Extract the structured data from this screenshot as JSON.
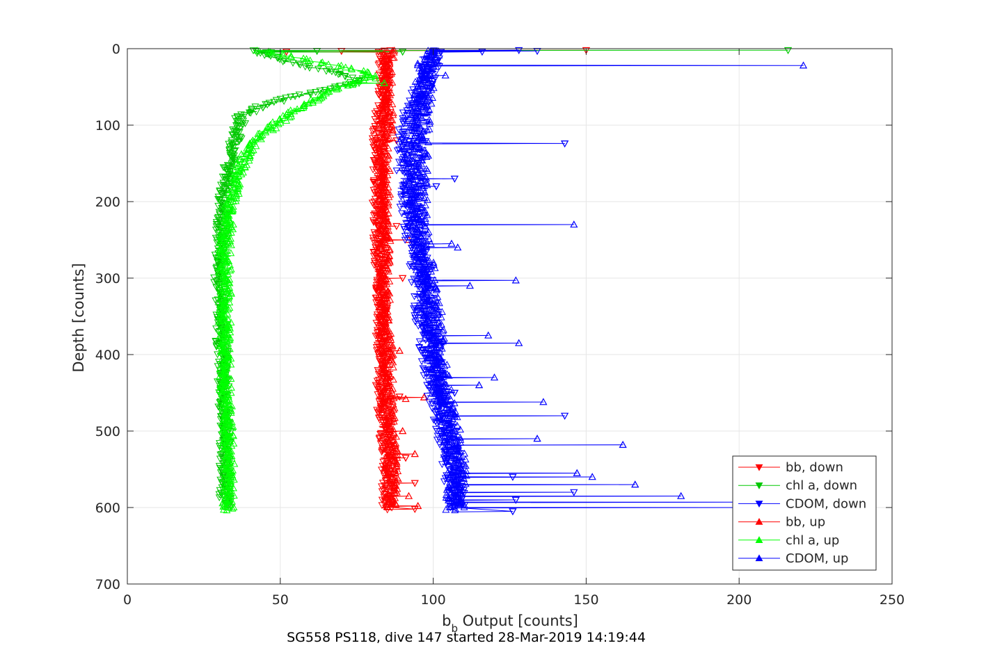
{
  "chart_data": {
    "type": "line",
    "title": "",
    "caption": "SG558 PS118, dive 147 started 28-Mar-2019 14:19:44",
    "xlabel_main": "b",
    "xlabel_sub": "b",
    "xlabel_rest": " Output [counts]",
    "ylabel": "Depth [counts]",
    "xlim": [
      0,
      250
    ],
    "ylim": [
      0,
      700
    ],
    "y_reversed": true,
    "grid": true,
    "x_ticks": [
      0,
      50,
      100,
      150,
      200,
      250
    ],
    "x_tick_labels": [
      "0",
      "50",
      "100",
      "150",
      "200",
      "250"
    ],
    "y_ticks": [
      0,
      100,
      200,
      300,
      400,
      500,
      600,
      700
    ],
    "y_tick_labels": [
      "0",
      "100",
      "200",
      "300",
      "400",
      "500",
      "600",
      "700"
    ],
    "legend_position": "bottom-right",
    "series": [
      {
        "name": "bb, down",
        "color": "#ff0000",
        "marker": "triangle-down",
        "profile": [
          [
            2,
            84
          ],
          [
            20,
            84
          ],
          [
            50,
            84
          ],
          [
            80,
            83
          ],
          [
            100,
            82
          ],
          [
            150,
            82
          ],
          [
            200,
            82
          ],
          [
            250,
            82
          ],
          [
            300,
            83
          ],
          [
            350,
            83
          ],
          [
            400,
            83
          ],
          [
            450,
            83
          ],
          [
            500,
            84
          ],
          [
            550,
            85
          ],
          [
            600,
            85
          ]
        ],
        "spikes": [
          [
            2,
            150
          ],
          [
            3,
            70
          ],
          [
            4,
            52
          ],
          [
            120,
            88
          ],
          [
            232,
            88
          ],
          [
            300,
            90
          ],
          [
            455,
            89
          ],
          [
            535,
            91
          ],
          [
            568,
            94
          ],
          [
            602,
            94
          ]
        ]
      },
      {
        "name": "chl a, down",
        "color": "#00c800",
        "marker": "triangle-down",
        "profile": [
          [
            2,
            42
          ],
          [
            10,
            46
          ],
          [
            20,
            55
          ],
          [
            30,
            68
          ],
          [
            40,
            76
          ],
          [
            45,
            74
          ],
          [
            55,
            64
          ],
          [
            65,
            52
          ],
          [
            78,
            42
          ],
          [
            90,
            37
          ],
          [
            110,
            36
          ],
          [
            140,
            34
          ],
          [
            180,
            32
          ],
          [
            230,
            31
          ],
          [
            300,
            30
          ],
          [
            400,
            31
          ],
          [
            500,
            32
          ],
          [
            600,
            32
          ]
        ],
        "spikes": [
          [
            2,
            216
          ],
          [
            3,
            62
          ],
          [
            4,
            90
          ],
          [
            5,
            47
          ]
        ]
      },
      {
        "name": "CDOM, down",
        "color": "#0000ff",
        "marker": "triangle-down",
        "profile": [
          [
            2,
            100
          ],
          [
            20,
            100
          ],
          [
            50,
            97
          ],
          [
            80,
            93
          ],
          [
            100,
            92
          ],
          [
            150,
            91
          ],
          [
            200,
            92
          ],
          [
            250,
            94
          ],
          [
            300,
            96
          ],
          [
            350,
            97
          ],
          [
            400,
            99
          ],
          [
            450,
            101
          ],
          [
            500,
            104
          ],
          [
            550,
            106
          ],
          [
            600,
            108
          ]
        ],
        "spikes": [
          [
            2,
            128
          ],
          [
            3,
            134
          ],
          [
            4,
            116
          ],
          [
            124,
            143
          ],
          [
            170,
            107
          ],
          [
            180,
            101
          ],
          [
            450,
            107
          ],
          [
            480,
            143
          ],
          [
            560,
            126
          ],
          [
            580,
            146
          ],
          [
            590,
            127
          ],
          [
            605,
            126
          ]
        ]
      },
      {
        "name": "bb, up",
        "color": "#ff0000",
        "marker": "triangle-up",
        "profile": [
          [
            600,
            86
          ],
          [
            550,
            87
          ],
          [
            500,
            86
          ],
          [
            450,
            85
          ],
          [
            400,
            85
          ],
          [
            350,
            84
          ],
          [
            300,
            84
          ],
          [
            250,
            84
          ],
          [
            200,
            84
          ],
          [
            150,
            84
          ],
          [
            100,
            85
          ],
          [
            50,
            85
          ],
          [
            20,
            85
          ],
          [
            2,
            86
          ]
        ],
        "spikes": [
          [
            250,
            92
          ],
          [
            395,
            89
          ],
          [
            456,
            97
          ],
          [
            458,
            91
          ],
          [
            500,
            90
          ],
          [
            530,
            94
          ],
          [
            585,
            92
          ],
          [
            598,
            95
          ]
        ]
      },
      {
        "name": "chl a, up",
        "color": "#00ff00",
        "marker": "triangle-up",
        "profile": [
          [
            604,
            33
          ],
          [
            550,
            33
          ],
          [
            500,
            33
          ],
          [
            450,
            32
          ],
          [
            400,
            32
          ],
          [
            300,
            32
          ],
          [
            250,
            32
          ],
          [
            200,
            34
          ],
          [
            160,
            36
          ],
          [
            130,
            40
          ],
          [
            110,
            45
          ],
          [
            85,
            53
          ],
          [
            70,
            60
          ],
          [
            55,
            66
          ],
          [
            45,
            74
          ],
          [
            40,
            79
          ],
          [
            35,
            81
          ],
          [
            25,
            73
          ],
          [
            15,
            59
          ],
          [
            8,
            50
          ],
          [
            3,
            44
          ]
        ],
        "spikes": [
          [
            45,
            84
          ]
        ]
      },
      {
        "name": "CDOM, up",
        "color": "#0000ff",
        "marker": "triangle-up",
        "profile": [
          [
            604,
            107
          ],
          [
            550,
            108
          ],
          [
            500,
            106
          ],
          [
            450,
            103
          ],
          [
            400,
            101
          ],
          [
            350,
            100
          ],
          [
            300,
            98
          ],
          [
            250,
            96
          ],
          [
            200,
            95
          ],
          [
            150,
            95
          ],
          [
            100,
            96
          ],
          [
            50,
            97
          ],
          [
            20,
            98
          ],
          [
            2,
            99
          ]
        ],
        "spikes": [
          [
            22,
            221
          ],
          [
            35,
            104
          ],
          [
            230,
            146
          ],
          [
            255,
            106
          ],
          [
            260,
            108
          ],
          [
            303,
            127
          ],
          [
            310,
            112
          ],
          [
            375,
            118
          ],
          [
            385,
            128
          ],
          [
            430,
            120
          ],
          [
            440,
            115
          ],
          [
            462,
            136
          ],
          [
            510,
            134
          ],
          [
            518,
            162
          ],
          [
            555,
            147
          ],
          [
            560,
            152
          ],
          [
            570,
            166
          ],
          [
            585,
            181
          ],
          [
            593,
            199
          ],
          [
            600,
            203
          ]
        ]
      }
    ]
  }
}
